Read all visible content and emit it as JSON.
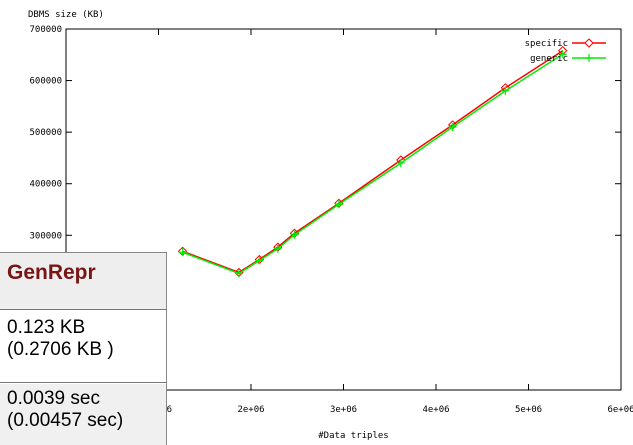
{
  "chart_data": {
    "type": "line",
    "ylabel": "DBMS size (KB)",
    "xlabel": "#Data triples",
    "xlim": [
      0,
      6000000
    ],
    "ylim": [
      0,
      700000
    ],
    "x_ticks": [
      1000000,
      2000000,
      3000000,
      4000000,
      5000000,
      6000000
    ],
    "x_tick_labels": [
      "1e+06",
      "2e+06",
      "3e+06",
      "4e+06",
      "5e+06",
      "6e+06"
    ],
    "y_ticks": [
      300000,
      400000,
      500000,
      600000,
      700000
    ],
    "y_tick_labels": [
      "300000",
      "400000",
      "500000",
      "600000",
      "700000"
    ],
    "legend_position": "top-right",
    "series": [
      {
        "name": "specific",
        "color": "#ff0000",
        "marker": "diamond",
        "x": [
          1260000,
          1870000,
          2090000,
          2290000,
          2470000,
          2950000,
          3620000,
          4180000,
          4750000,
          5370000
        ],
        "y": [
          269000,
          228000,
          253000,
          277000,
          304000,
          362000,
          446000,
          514000,
          586000,
          658000
        ]
      },
      {
        "name": "generic",
        "color": "#00ee00",
        "marker": "plus",
        "x": [
          1260000,
          1870000,
          2090000,
          2290000,
          2470000,
          2950000,
          3620000,
          4180000,
          4750000,
          5370000
        ],
        "y": [
          267000,
          226000,
          251000,
          274000,
          301000,
          360000,
          440000,
          510000,
          580000,
          651000
        ]
      }
    ]
  },
  "overlay": {
    "title": "GenRepr",
    "size_line1": "0.123 KB",
    "size_line2": "(0.2706 KB )",
    "time_line1": "0.0039 sec",
    "time_line2": "(0.00457 sec)"
  }
}
